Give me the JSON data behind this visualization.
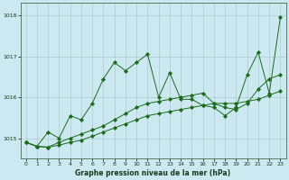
{
  "background_color": "#cce8f0",
  "grid_color": "#aacccc",
  "line_color": "#1a6b1a",
  "marker_color": "#1a6b1a",
  "title": "Graphe pression niveau de la mer (hPa)",
  "ylim": [
    1014.5,
    1018.3
  ],
  "yticks": [
    1015,
    1016,
    1017,
    1018
  ],
  "xlim": [
    -0.5,
    23.5
  ],
  "xticks": [
    0,
    1,
    2,
    3,
    4,
    5,
    6,
    7,
    8,
    9,
    10,
    11,
    12,
    13,
    14,
    15,
    16,
    17,
    18,
    19,
    20,
    21,
    22,
    23
  ],
  "series": [
    {
      "x": [
        0,
        1,
        2,
        3,
        4,
        5,
        6,
        7,
        8,
        9,
        10,
        11,
        12,
        13,
        14,
        15,
        16,
        17,
        18,
        19,
        20,
        21,
        22,
        23
      ],
      "y": [
        1014.9,
        1014.8,
        1014.78,
        1014.83,
        1014.9,
        1014.95,
        1015.05,
        1015.15,
        1015.25,
        1015.35,
        1015.45,
        1015.55,
        1015.6,
        1015.65,
        1015.7,
        1015.75,
        1015.8,
        1015.85,
        1015.85,
        1015.85,
        1015.9,
        1015.95,
        1016.05,
        1016.15
      ]
    },
    {
      "x": [
        0,
        1,
        2,
        3,
        4,
        5,
        6,
        7,
        8,
        9,
        10,
        11,
        12,
        13,
        14,
        15,
        16,
        17,
        18,
        19,
        20,
        21,
        22,
        23
      ],
      "y": [
        1014.9,
        1014.8,
        1014.78,
        1014.9,
        1015.0,
        1015.1,
        1015.2,
        1015.3,
        1015.45,
        1015.6,
        1015.75,
        1015.85,
        1015.9,
        1015.95,
        1016.0,
        1016.05,
        1016.1,
        1015.85,
        1015.75,
        1015.7,
        1015.85,
        1016.2,
        1016.45,
        1016.55
      ]
    },
    {
      "x": [
        0,
        1,
        2,
        3,
        4,
        5,
        6,
        7,
        8,
        9,
        10,
        11,
        12,
        13,
        14,
        15,
        16,
        17,
        18,
        19,
        20,
        21,
        22,
        23
      ],
      "y": [
        1014.9,
        1014.8,
        1015.15,
        1015.0,
        1015.55,
        1015.45,
        1015.85,
        1016.45,
        1016.85,
        1016.65,
        1016.85,
        1017.05,
        1016.0,
        1016.6,
        1015.95,
        1015.95,
        1015.8,
        1015.75,
        1015.55,
        1015.75,
        1016.55,
        1017.1,
        1016.1,
        1017.95
      ]
    }
  ]
}
